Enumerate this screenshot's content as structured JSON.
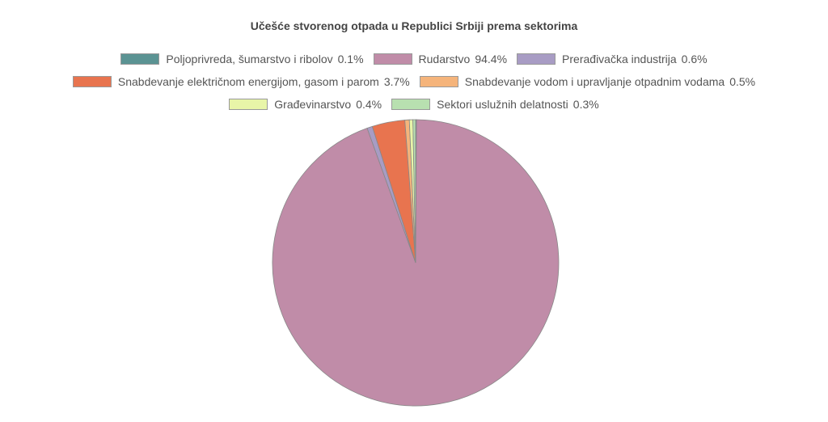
{
  "chart_data": {
    "type": "pie",
    "title": "Učešće stvorenog otpada u Republici Srbiji prema sektorima",
    "legend_position": "top",
    "slices": [
      {
        "label": "Poljoprivreda, šumarstvo i ribolov",
        "value": 0.1,
        "display": "0.1%",
        "color": "#5b9393"
      },
      {
        "label": "Rudarstvo",
        "value": 94.4,
        "display": "94.4%",
        "color": "#c08ca8"
      },
      {
        "label": "Prerađivačka industrija",
        "value": 0.6,
        "display": "0.6%",
        "color": "#a89cc4"
      },
      {
        "label": "Snabdevanje električnom energijom, gasom i parom",
        "value": 3.7,
        "display": "3.7%",
        "color": "#e8744f"
      },
      {
        "label": "Snabdevanje vodom i upravljanje otpadnim vodama",
        "value": 0.5,
        "display": "0.5%",
        "color": "#f5b47b"
      },
      {
        "label": "Građevinarstvo",
        "value": 0.4,
        "display": "0.4%",
        "color": "#e8f5a8"
      },
      {
        "label": "Sektori uslužnih delatnosti",
        "value": 0.3,
        "display": "0.3%",
        "color": "#b8e0b0"
      }
    ]
  }
}
